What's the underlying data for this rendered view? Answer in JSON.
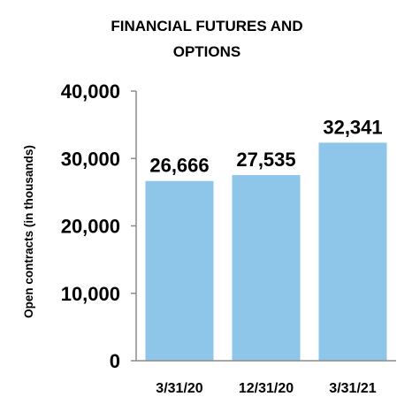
{
  "chart_data": {
    "type": "bar",
    "title_lines": [
      "FINANCIAL FUTURES AND",
      "OPTIONS"
    ],
    "xlabel": "",
    "ylabel": "Open contracts (in thousands)",
    "categories": [
      "3/31/20",
      "12/31/20",
      "3/31/21"
    ],
    "values": [
      26666,
      27535,
      32341
    ],
    "value_labels": [
      "26,666",
      "27,535",
      "32,341"
    ],
    "ylim": [
      0,
      40000
    ],
    "yticks": [
      0,
      10000,
      20000,
      30000,
      40000
    ],
    "ytick_labels": [
      "0",
      "10,000",
      "20,000",
      "30,000",
      "40,000"
    ],
    "bar_color": "#8EC6EA",
    "axis_color": "#8C8C8C",
    "grid": false,
    "legend": "none"
  }
}
